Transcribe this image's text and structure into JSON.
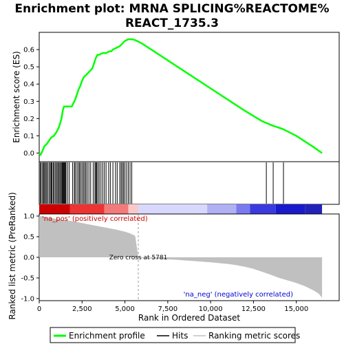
{
  "chart_data": {
    "type": "line",
    "title_line1": "Enrichment plot: MRNA SPLICING%REACTOME%",
    "title_line2": "REACT_1735.3",
    "top_panel": {
      "ylabel": "Enrichment score (ES)",
      "ylim": [
        -0.05,
        0.7
      ],
      "yticks": [
        0.0,
        0.1,
        0.2,
        0.3,
        0.4,
        0.5,
        0.6
      ],
      "ytick_labels": [
        "0.0",
        "0.1",
        "0.2",
        "0.3",
        "0.4",
        "0.5",
        "0.6"
      ],
      "grid": false,
      "series": [
        {
          "name": "Enrichment profile",
          "color": "#00ff00",
          "x": [
            0,
            80,
            180,
            300,
            420,
            560,
            700,
            850,
            1000,
            1150,
            1300,
            1380,
            1450,
            1600,
            1750,
            1900,
            2000,
            2100,
            2200,
            2300,
            2400,
            2500,
            2600,
            2700,
            2800,
            2900,
            3000,
            3100,
            3200,
            3300,
            3400,
            3500,
            3600,
            3700,
            3800,
            3900,
            4000,
            4100,
            4200,
            4300,
            4400,
            4500,
            4600,
            4700,
            4800,
            4900,
            5000,
            5100,
            5200,
            5300,
            5400,
            5600,
            5800,
            6000,
            7000,
            8000,
            9000,
            10000,
            11000,
            12000,
            13000,
            13600,
            14200,
            15000,
            16000,
            16500
          ],
          "y": [
            0.0,
            -0.01,
            0.01,
            0.04,
            0.05,
            0.07,
            0.09,
            0.1,
            0.12,
            0.15,
            0.2,
            0.25,
            0.27,
            0.27,
            0.27,
            0.27,
            0.29,
            0.31,
            0.34,
            0.37,
            0.39,
            0.42,
            0.44,
            0.45,
            0.46,
            0.47,
            0.48,
            0.49,
            0.52,
            0.55,
            0.57,
            0.57,
            0.575,
            0.58,
            0.58,
            0.58,
            0.585,
            0.59,
            0.59,
            0.6,
            0.605,
            0.61,
            0.615,
            0.62,
            0.63,
            0.64,
            0.65,
            0.655,
            0.66,
            0.66,
            0.66,
            0.655,
            0.645,
            0.635,
            0.57,
            0.505,
            0.44,
            0.375,
            0.31,
            0.245,
            0.185,
            0.16,
            0.14,
            0.1,
            0.035,
            0.0
          ]
        }
      ]
    },
    "hits_panel": {
      "series_name": "Hits",
      "hit_positions": [
        60,
        120,
        200,
        250,
        310,
        370,
        430,
        500,
        580,
        650,
        700,
        750,
        820,
        880,
        950,
        1020,
        1080,
        1140,
        1200,
        1260,
        1320,
        1360,
        1400,
        1440,
        1480,
        1520,
        1560,
        1650,
        1750,
        1950,
        2050,
        2100,
        2200,
        2280,
        2350,
        2420,
        2500,
        2580,
        2650,
        2720,
        2800,
        2900,
        3000,
        3150,
        3250,
        3300,
        3350,
        3420,
        3500,
        3600,
        3700,
        3800,
        3900,
        4050,
        4150,
        4300,
        4450,
        4550,
        4700,
        4780,
        4850,
        4920,
        5000,
        5100,
        5200,
        5300,
        5400,
        13250,
        13650,
        14250
      ],
      "color_bar_breaks": [
        0,
        1800,
        3800,
        5200,
        5781,
        9800,
        11500,
        12300,
        13800,
        15500,
        16500
      ],
      "color_bar_colors": [
        "#cc0000",
        "#ee3333",
        "#f47a7a",
        "#f9c9c9",
        "#d8d8ff",
        "#b0b0f5",
        "#7a7af0",
        "#3a3adf",
        "#1a1acc",
        "#2222bb"
      ]
    },
    "bottom_panel": {
      "series_name": "Ranking metric scores",
      "ylabel": "Ranked list metric (PreRanked)",
      "ylim": [
        -1.05,
        1.05
      ],
      "yticks": [
        1.0,
        0.5,
        0.0,
        -0.5,
        -1.0
      ],
      "ytick_labels": [
        "1.0",
        "0.5",
        "0.0",
        "-0.5",
        "-1.0"
      ],
      "xlabel": "Rank in Ordered Dataset",
      "xlim": [
        0,
        17500
      ],
      "xticks": [
        0,
        2500,
        5000,
        7500,
        10000,
        12500,
        15000
      ],
      "xtick_labels": [
        "0",
        "2,500",
        "5,000",
        "7,500",
        "10,000",
        "12,500",
        "15,000"
      ],
      "x": [
        0,
        200,
        600,
        1000,
        1500,
        2000,
        2500,
        3000,
        3500,
        4000,
        4500,
        5000,
        5300,
        5600,
        5781,
        6000,
        7000,
        8000,
        9000,
        10000,
        11000,
        11500,
        12000,
        12500,
        13000,
        13500,
        14000,
        14500,
        15000,
        15500,
        16000,
        16300,
        16500
      ],
      "y": [
        1.0,
        0.99,
        0.96,
        0.93,
        0.9,
        0.87,
        0.83,
        0.79,
        0.75,
        0.71,
        0.67,
        0.62,
        0.58,
        0.52,
        0.0,
        -0.02,
        -0.04,
        -0.06,
        -0.09,
        -0.12,
        -0.16,
        -0.19,
        -0.23,
        -0.28,
        -0.35,
        -0.42,
        -0.5,
        -0.56,
        -0.62,
        -0.7,
        -0.8,
        -0.88,
        -0.98
      ],
      "zero_cross_rank": 5781,
      "zero_cross_label": "Zero cross at 5781",
      "pos_label": "'na_pos' (positively correlated)",
      "neg_label": "'na_neg' (negatively correlated)"
    },
    "legend": {
      "placement": "bottom",
      "entries": [
        {
          "name": "Enrichment profile",
          "color": "#00ff00"
        },
        {
          "name": "Hits",
          "color": "#000000"
        },
        {
          "name": "Ranking metric scores",
          "color": "#c0c0c0"
        }
      ]
    }
  }
}
